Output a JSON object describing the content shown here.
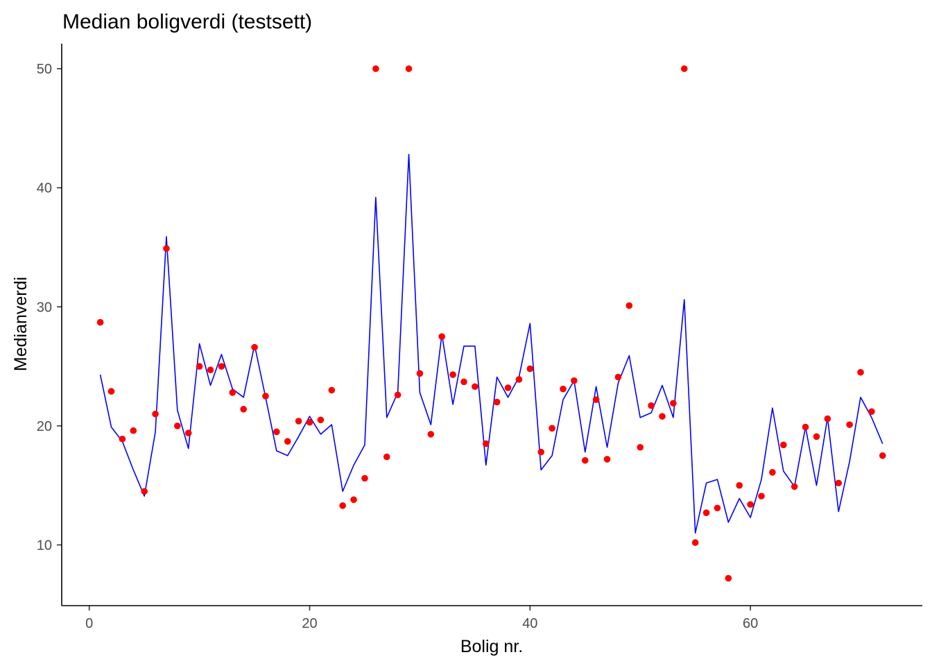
{
  "chart_data": {
    "type": "line",
    "title": "Median boligverdi (testsett)",
    "xlabel": "Bolig nr.",
    "ylabel": "Medianverdi",
    "xlim": [
      -2.5,
      75.6
    ],
    "ylim": [
      4.9,
      52.1
    ],
    "x_ticks": [
      0,
      20,
      40,
      60
    ],
    "y_ticks": [
      10,
      20,
      30,
      40,
      50
    ],
    "grid": false,
    "legend": "none",
    "colors": {
      "predicted": "#0000ff",
      "actual": "#ff0000",
      "axis": "#000000",
      "tick_text": "#4d4d4d"
    },
    "x": [
      1,
      2,
      3,
      4,
      5,
      6,
      7,
      8,
      9,
      10,
      11,
      12,
      13,
      14,
      15,
      16,
      17,
      18,
      19,
      20,
      21,
      22,
      23,
      24,
      25,
      26,
      27,
      28,
      29,
      30,
      31,
      32,
      33,
      34,
      35,
      36,
      37,
      38,
      39,
      40,
      41,
      42,
      43,
      44,
      45,
      46,
      47,
      48,
      49,
      50,
      51,
      52,
      53,
      54,
      55,
      56,
      57,
      58,
      59,
      60,
      61,
      62,
      63,
      64,
      65,
      66,
      67,
      68,
      69,
      70,
      71,
      72
    ],
    "series": [
      {
        "kind": "line",
        "color": "#0000ff",
        "values": [
          24.3,
          19.9,
          18.7,
          16.3,
          14.1,
          19.5,
          35.9,
          21.3,
          18.1,
          26.9,
          23.4,
          26.0,
          23.1,
          22.4,
          26.8,
          22.4,
          17.9,
          17.5,
          19.1,
          20.8,
          19.3,
          20.1,
          14.5,
          16.7,
          18.4,
          39.2,
          20.7,
          22.8,
          42.8,
          22.8,
          20.1,
          27.7,
          21.8,
          26.7,
          26.7,
          16.7,
          24.1,
          22.4,
          24.1,
          28.6,
          16.3,
          17.5,
          22.2,
          23.8,
          17.8,
          23.3,
          18.2,
          23.6,
          25.9,
          20.7,
          21.1,
          23.4,
          20.7,
          30.6,
          11.0,
          15.2,
          15.5,
          11.9,
          13.9,
          12.3,
          15.5,
          21.5,
          16.2,
          14.9,
          19.9,
          15.0,
          20.7,
          12.8,
          17.0,
          22.4,
          20.7,
          18.5
        ]
      },
      {
        "kind": "points",
        "color": "#ff0000",
        "values": [
          28.7,
          22.9,
          18.9,
          19.6,
          14.5,
          21.0,
          34.9,
          20.0,
          19.4,
          25.0,
          24.7,
          25.0,
          22.8,
          21.4,
          26.6,
          22.5,
          19.5,
          18.7,
          20.4,
          20.3,
          20.5,
          23.0,
          13.3,
          13.8,
          15.6,
          50.0,
          17.4,
          22.6,
          50.0,
          24.4,
          19.3,
          27.5,
          24.3,
          23.7,
          23.3,
          18.5,
          22.0,
          23.2,
          23.9,
          24.8,
          17.8,
          19.8,
          23.1,
          23.8,
          17.1,
          22.2,
          17.2,
          24.1,
          30.1,
          18.2,
          21.7,
          20.8,
          21.9,
          50.0,
          10.2,
          12.7,
          13.1,
          7.2,
          15.0,
          13.4,
          14.1,
          16.1,
          18.4,
          14.9,
          19.9,
          19.1,
          20.6,
          15.2,
          20.1,
          24.5,
          21.2,
          17.5
        ]
      }
    ]
  }
}
